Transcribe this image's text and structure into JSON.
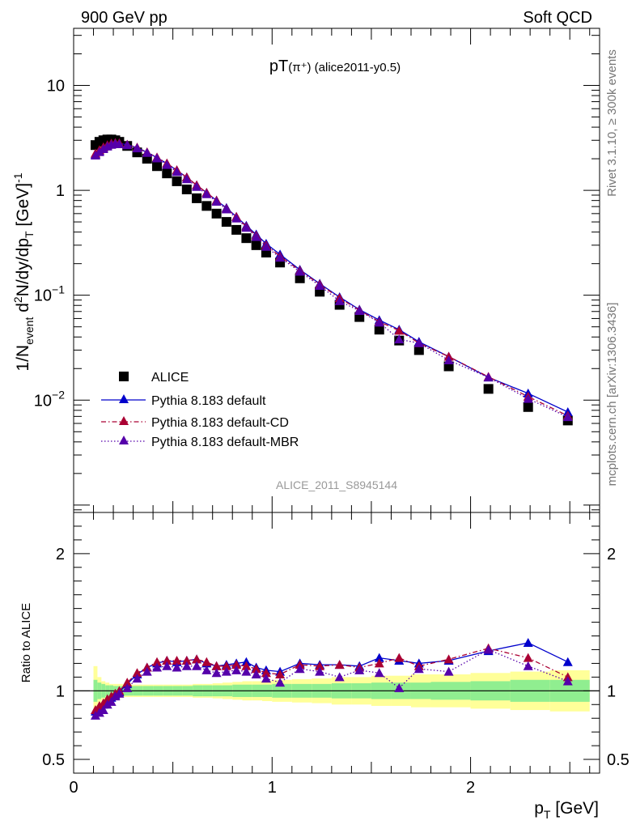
{
  "header": {
    "left": "900 GeV pp",
    "right": "Soft QCD"
  },
  "side_labels": {
    "rivet": "Rivet 3.1.10, ≥ 300k events",
    "mcplots": "mcplots.cern.ch [arXiv:1306.3436]"
  },
  "chart_data": [
    {
      "type": "scatter",
      "panel": "main",
      "title": "pT(π⁺) (alice2011-y0.5)",
      "title_main": "pT",
      "title_sub": "(π⁺) (alice2011-y0.5)",
      "ylabel": "1/N_event d²N/dy/dp_T [GeV]⁻¹",
      "ylabel_parts": {
        "a": "1/N",
        "b": "event",
        "c": " d",
        "d": "2",
        "e": "N/dy/dp",
        "f": "T",
        "g": " [GeV]",
        "h": "-1"
      },
      "yscale": "log",
      "xlim": [
        0,
        2.65
      ],
      "ylim": [
        0.00085,
        35
      ],
      "ytick_labels": [
        {
          "value": 10,
          "base": "10",
          "exp": ""
        },
        {
          "value": 1,
          "base": "1",
          "exp": ""
        },
        {
          "value": 0.1,
          "base": "10",
          "exp": "−1"
        },
        {
          "value": 0.01,
          "base": "10",
          "exp": "−2"
        }
      ],
      "watermark": "ALICE_2011_S8945144",
      "x": [
        0.11,
        0.13,
        0.15,
        0.17,
        0.19,
        0.21,
        0.23,
        0.27,
        0.32,
        0.37,
        0.42,
        0.47,
        0.52,
        0.57,
        0.62,
        0.67,
        0.72,
        0.77,
        0.82,
        0.87,
        0.92,
        0.97,
        1.04,
        1.14,
        1.24,
        1.34,
        1.44,
        1.54,
        1.64,
        1.74,
        1.89,
        2.09,
        2.29,
        2.49
      ],
      "series": [
        {
          "name": "ALICE",
          "marker": "square",
          "color": "#000000",
          "line": "none",
          "values": [
            2.7,
            2.9,
            3.0,
            3.05,
            3.05,
            3.0,
            2.9,
            2.65,
            2.3,
            2.0,
            1.7,
            1.45,
            1.22,
            1.02,
            0.84,
            0.71,
            0.6,
            0.5,
            0.42,
            0.35,
            0.3,
            0.255,
            0.205,
            0.145,
            0.108,
            0.081,
            0.062,
            0.047,
            0.037,
            0.03,
            0.021,
            0.0128,
            0.0086,
            0.0064
          ]
        },
        {
          "name": "Pythia 8.183 default",
          "marker": "triangle",
          "color": "#0000cc",
          "line": "solid",
          "values": [
            2.2,
            2.38,
            2.55,
            2.68,
            2.78,
            2.82,
            2.8,
            2.72,
            2.55,
            2.3,
            2.05,
            1.8,
            1.55,
            1.33,
            1.12,
            0.95,
            0.8,
            0.68,
            0.56,
            0.46,
            0.38,
            0.31,
            0.245,
            0.175,
            0.129,
            0.096,
            0.073,
            0.058,
            0.047,
            0.036,
            0.026,
            0.0165,
            0.0116,
            0.0077
          ]
        },
        {
          "name": "Pythia 8.183 default-CD",
          "marker": "triangle",
          "color": "#aa0033",
          "line": "dashdot",
          "values": [
            2.25,
            2.42,
            2.58,
            2.7,
            2.8,
            2.84,
            2.82,
            2.73,
            2.56,
            2.31,
            2.06,
            1.81,
            1.56,
            1.33,
            1.12,
            0.95,
            0.8,
            0.67,
            0.56,
            0.45,
            0.37,
            0.3,
            0.235,
            0.172,
            0.127,
            0.094,
            0.072,
            0.056,
            0.046,
            0.035,
            0.026,
            0.0167,
            0.0108,
            0.0071
          ]
        },
        {
          "name": "Pythia 8.183 default-MBR",
          "marker": "triangle",
          "color": "#5500aa",
          "line": "dotted",
          "values": [
            2.15,
            2.32,
            2.48,
            2.62,
            2.72,
            2.78,
            2.76,
            2.7,
            2.52,
            2.28,
            2.02,
            1.75,
            1.5,
            1.28,
            1.08,
            0.92,
            0.78,
            0.66,
            0.54,
            0.44,
            0.36,
            0.29,
            0.228,
            0.168,
            0.123,
            0.088,
            0.071,
            0.055,
            0.038,
            0.035,
            0.024,
            0.0165,
            0.0103,
            0.0069
          ]
        }
      ]
    },
    {
      "type": "scatter",
      "panel": "ratio",
      "ylabel": "Ratio to ALICE",
      "xlabel": "p_T [GeV]",
      "xlabel_main": "p",
      "xlabel_sub": "T",
      "xlabel_unit": " [GeV]",
      "xlim": [
        0,
        2.65
      ],
      "ylim": [
        0.4,
        2.3
      ],
      "xtick_labels": [
        {
          "value": 0,
          "label": "0"
        },
        {
          "value": 1,
          "label": "1"
        },
        {
          "value": 2,
          "label": "2"
        }
      ],
      "ytick_labels": [
        {
          "value": 2,
          "label": "2"
        },
        {
          "value": 1,
          "label": "1"
        },
        {
          "value": 0.5,
          "label": "0.5"
        }
      ],
      "reference_line": 1.0,
      "uncertainty_bins": [
        0.1,
        0.12,
        0.14,
        0.16,
        0.18,
        0.2,
        0.22,
        0.25,
        0.3,
        0.35,
        0.4,
        0.45,
        0.5,
        0.55,
        0.6,
        0.65,
        0.7,
        0.75,
        0.8,
        0.85,
        0.9,
        0.95,
        1.0,
        1.1,
        1.2,
        1.3,
        1.4,
        1.5,
        1.6,
        1.7,
        1.8,
        2.0,
        2.2,
        2.4,
        2.6
      ],
      "stat_band": [
        0.08,
        0.06,
        0.05,
        0.04,
        0.04,
        0.035,
        0.035,
        0.035,
        0.035,
        0.035,
        0.035,
        0.035,
        0.035,
        0.035,
        0.04,
        0.04,
        0.04,
        0.04,
        0.045,
        0.045,
        0.045,
        0.045,
        0.05,
        0.05,
        0.05,
        0.055,
        0.055,
        0.06,
        0.06,
        0.06,
        0.065,
        0.07,
        0.08,
        0.08
      ],
      "syst_band": [
        0.18,
        0.1,
        0.07,
        0.06,
        0.05,
        0.05,
        0.05,
        0.045,
        0.045,
        0.045,
        0.045,
        0.045,
        0.045,
        0.045,
        0.05,
        0.05,
        0.055,
        0.06,
        0.065,
        0.07,
        0.07,
        0.075,
        0.08,
        0.085,
        0.09,
        0.1,
        0.1,
        0.11,
        0.11,
        0.12,
        0.12,
        0.13,
        0.14,
        0.15
      ],
      "band_colors": {
        "stat": "#90ee90",
        "syst": "#ffff99"
      },
      "x": [
        0.11,
        0.13,
        0.15,
        0.17,
        0.19,
        0.21,
        0.23,
        0.27,
        0.32,
        0.37,
        0.42,
        0.47,
        0.52,
        0.57,
        0.62,
        0.67,
        0.72,
        0.77,
        0.82,
        0.87,
        0.92,
        0.97,
        1.04,
        1.14,
        1.24,
        1.34,
        1.44,
        1.54,
        1.64,
        1.74,
        1.89,
        2.09,
        2.29,
        2.49
      ],
      "series": [
        {
          "name": "Pythia 8.183 default",
          "marker": "triangle",
          "color": "#0000cc",
          "line": "solid",
          "values": [
            0.85,
            0.88,
            0.9,
            0.93,
            0.95,
            0.97,
            0.99,
            1.05,
            1.12,
            1.17,
            1.2,
            1.22,
            1.21,
            1.22,
            1.23,
            1.2,
            1.18,
            1.19,
            1.2,
            1.21,
            1.17,
            1.15,
            1.14,
            1.2,
            1.19,
            1.19,
            1.18,
            1.24,
            1.22,
            1.2,
            1.22,
            1.29,
            1.35,
            1.21
          ]
        },
        {
          "name": "Pythia 8.183 default-CD",
          "marker": "triangle",
          "color": "#aa0033",
          "line": "dashdot",
          "values": [
            0.86,
            0.89,
            0.91,
            0.94,
            0.96,
            0.98,
            1.0,
            1.06,
            1.13,
            1.17,
            1.21,
            1.22,
            1.22,
            1.22,
            1.23,
            1.21,
            1.18,
            1.18,
            1.19,
            1.18,
            1.16,
            1.13,
            1.12,
            1.19,
            1.18,
            1.19,
            1.17,
            1.2,
            1.24,
            1.18,
            1.23,
            1.31,
            1.24,
            1.1
          ]
        },
        {
          "name": "Pythia 8.183 default-MBR",
          "marker": "triangle",
          "color": "#5500aa",
          "line": "dotted",
          "values": [
            0.82,
            0.84,
            0.86,
            0.9,
            0.92,
            0.96,
            0.98,
            1.02,
            1.09,
            1.14,
            1.17,
            1.18,
            1.17,
            1.18,
            1.18,
            1.15,
            1.13,
            1.14,
            1.15,
            1.14,
            1.12,
            1.09,
            1.06,
            1.16,
            1.14,
            1.1,
            1.15,
            1.13,
            1.02,
            1.16,
            1.14,
            1.3,
            1.18,
            1.07
          ]
        }
      ]
    }
  ]
}
